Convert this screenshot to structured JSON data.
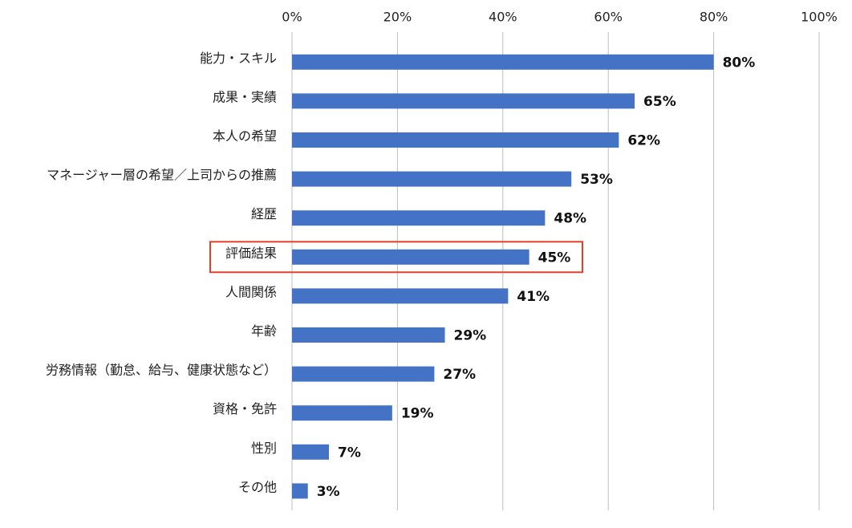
{
  "chart_data": {
    "type": "bar",
    "orientation": "horizontal",
    "categories": [
      "能力・スキル",
      "成果・実績",
      "本人の希望",
      "マネージャー層の希望／上司からの推薦",
      "経歴",
      "評価結果",
      "人間関係",
      "年齢",
      "労務情報（勤怠、給与、健康状態など）",
      "資格・免許",
      "性別",
      "その他"
    ],
    "values": [
      80,
      65,
      62,
      53,
      48,
      45,
      41,
      29,
      27,
      19,
      7,
      3
    ],
    "value_labels": [
      "80%",
      "65%",
      "62%",
      "53%",
      "48%",
      "45%",
      "41%",
      "29%",
      "27%",
      "19%",
      "7%",
      "3%"
    ],
    "color": "#4472c4",
    "xlim": [
      0,
      100
    ],
    "xticks": [
      {
        "value": 0,
        "label": "0%"
      },
      {
        "value": 20,
        "label": "20%"
      },
      {
        "value": 40,
        "label": "40%"
      },
      {
        "value": 60,
        "label": "60%"
      },
      {
        "value": 80,
        "label": "80%"
      },
      {
        "value": 100,
        "label": "100%"
      }
    ],
    "grid": true,
    "highlight_category": 5,
    "highlight_color": "#e0402a"
  }
}
